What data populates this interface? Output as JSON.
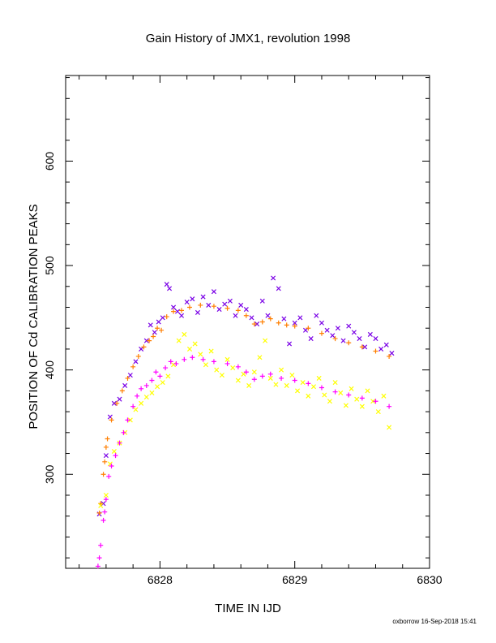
{
  "chart_data": {
    "type": "scatter",
    "title": "Gain History of JMX1, revolution 1998",
    "xlabel": "TIME IN IJD",
    "ylabel": "POSITION OF Cd CALIBRATION PEAKS",
    "xlim": [
      6827.3,
      6830.0
    ],
    "ylim": [
      210,
      682
    ],
    "x_ticks": [
      6828,
      6829,
      6830
    ],
    "y_ticks": [
      300,
      400,
      500,
      600
    ],
    "grid": false,
    "legend": "none",
    "footer": "oxborrow 16-Sep-2018 15:41",
    "series": [
      {
        "marker": "x",
        "color": "#7a00e6",
        "points": [
          [
            6827.55,
            262
          ],
          [
            6827.58,
            272
          ],
          [
            6827.6,
            318
          ],
          [
            6827.63,
            355
          ],
          [
            6827.66,
            368
          ],
          [
            6827.7,
            372
          ],
          [
            6827.74,
            385
          ],
          [
            6827.78,
            395
          ],
          [
            6827.82,
            408
          ],
          [
            6827.86,
            420
          ],
          [
            6827.9,
            428
          ],
          [
            6827.93,
            443
          ],
          [
            6827.96,
            436
          ],
          [
            6827.99,
            446
          ],
          [
            6828.02,
            450
          ],
          [
            6828.05,
            482
          ],
          [
            6828.07,
            478
          ],
          [
            6828.1,
            460
          ],
          [
            6828.13,
            456
          ],
          [
            6828.16,
            452
          ],
          [
            6828.2,
            465
          ],
          [
            6828.24,
            468
          ],
          [
            6828.28,
            455
          ],
          [
            6828.32,
            470
          ],
          [
            6828.36,
            462
          ],
          [
            6828.4,
            475
          ],
          [
            6828.44,
            458
          ],
          [
            6828.48,
            463
          ],
          [
            6828.52,
            466
          ],
          [
            6828.56,
            452
          ],
          [
            6828.6,
            462
          ],
          [
            6828.64,
            458
          ],
          [
            6828.68,
            450
          ],
          [
            6828.72,
            444
          ],
          [
            6828.76,
            466
          ],
          [
            6828.8,
            452
          ],
          [
            6828.84,
            488
          ],
          [
            6828.88,
            478
          ],
          [
            6828.92,
            449
          ],
          [
            6828.96,
            425
          ],
          [
            6829.0,
            445
          ],
          [
            6829.04,
            450
          ],
          [
            6829.08,
            438
          ],
          [
            6829.12,
            430
          ],
          [
            6829.16,
            452
          ],
          [
            6829.2,
            445
          ],
          [
            6829.24,
            438
          ],
          [
            6829.28,
            433
          ],
          [
            6829.32,
            440
          ],
          [
            6829.36,
            428
          ],
          [
            6829.4,
            442
          ],
          [
            6829.44,
            436
          ],
          [
            6829.48,
            430
          ],
          [
            6829.52,
            422
          ],
          [
            6829.56,
            434
          ],
          [
            6829.6,
            430
          ],
          [
            6829.64,
            420
          ],
          [
            6829.68,
            424
          ],
          [
            6829.72,
            416
          ]
        ]
      },
      {
        "marker": "+",
        "color": "#ff7f00",
        "points": [
          [
            6827.55,
            263
          ],
          [
            6827.56,
            272
          ],
          [
            6827.58,
            300
          ],
          [
            6827.59,
            312
          ],
          [
            6827.6,
            326
          ],
          [
            6827.61,
            334
          ],
          [
            6827.64,
            352
          ],
          [
            6827.68,
            368
          ],
          [
            6827.72,
            380
          ],
          [
            6827.76,
            392
          ],
          [
            6827.8,
            403
          ],
          [
            6827.84,
            413
          ],
          [
            6827.88,
            422
          ],
          [
            6827.92,
            428
          ],
          [
            6827.95,
            432
          ],
          [
            6827.98,
            440
          ],
          [
            6828.01,
            438
          ],
          [
            6828.05,
            451
          ],
          [
            6828.1,
            456
          ],
          [
            6828.16,
            457
          ],
          [
            6828.22,
            460
          ],
          [
            6828.3,
            462
          ],
          [
            6828.4,
            461
          ],
          [
            6828.5,
            459
          ],
          [
            6828.58,
            457
          ],
          [
            6828.64,
            452
          ],
          [
            6828.7,
            444
          ],
          [
            6828.76,
            446
          ],
          [
            6828.82,
            449
          ],
          [
            6828.88,
            445
          ],
          [
            6828.94,
            443
          ],
          [
            6829.0,
            442
          ],
          [
            6829.1,
            440
          ],
          [
            6829.2,
            435
          ],
          [
            6829.3,
            430
          ],
          [
            6829.4,
            426
          ],
          [
            6829.5,
            422
          ],
          [
            6829.6,
            418
          ],
          [
            6829.7,
            413
          ]
        ]
      },
      {
        "marker": "x",
        "color": "#ffff00",
        "points": [
          [
            6827.56,
            270
          ],
          [
            6827.6,
            280
          ],
          [
            6827.63,
            310
          ],
          [
            6827.66,
            322
          ],
          [
            6827.7,
            330
          ],
          [
            6827.74,
            340
          ],
          [
            6827.78,
            352
          ],
          [
            6827.82,
            362
          ],
          [
            6827.86,
            368
          ],
          [
            6827.9,
            374
          ],
          [
            6827.94,
            378
          ],
          [
            6827.98,
            384
          ],
          [
            6828.02,
            388
          ],
          [
            6828.06,
            394
          ],
          [
            6828.1,
            405
          ],
          [
            6828.14,
            428
          ],
          [
            6828.18,
            434
          ],
          [
            6828.22,
            420
          ],
          [
            6828.26,
            425
          ],
          [
            6828.3,
            415
          ],
          [
            6828.34,
            405
          ],
          [
            6828.38,
            418
          ],
          [
            6828.42,
            400
          ],
          [
            6828.46,
            395
          ],
          [
            6828.5,
            410
          ],
          [
            6828.54,
            402
          ],
          [
            6828.58,
            390
          ],
          [
            6828.62,
            396
          ],
          [
            6828.66,
            385
          ],
          [
            6828.7,
            398
          ],
          [
            6828.74,
            412
          ],
          [
            6828.78,
            428
          ],
          [
            6828.82,
            392
          ],
          [
            6828.86,
            386
          ],
          [
            6828.9,
            400
          ],
          [
            6828.94,
            385
          ],
          [
            6828.98,
            395
          ],
          [
            6829.02,
            380
          ],
          [
            6829.06,
            388
          ],
          [
            6829.1,
            375
          ],
          [
            6829.14,
            384
          ],
          [
            6829.18,
            392
          ],
          [
            6829.22,
            376
          ],
          [
            6829.26,
            370
          ],
          [
            6829.3,
            388
          ],
          [
            6829.34,
            378
          ],
          [
            6829.38,
            366
          ],
          [
            6829.42,
            382
          ],
          [
            6829.46,
            372
          ],
          [
            6829.5,
            365
          ],
          [
            6829.54,
            380
          ],
          [
            6829.58,
            370
          ],
          [
            6829.62,
            360
          ],
          [
            6829.66,
            375
          ],
          [
            6829.7,
            345
          ]
        ]
      },
      {
        "marker": "+",
        "color": "#ff00ff",
        "points": [
          [
            6827.54,
            212
          ],
          [
            6827.55,
            220
          ],
          [
            6827.56,
            232
          ],
          [
            6827.58,
            256
          ],
          [
            6827.59,
            264
          ],
          [
            6827.6,
            276
          ],
          [
            6827.62,
            298
          ],
          [
            6827.64,
            308
          ],
          [
            6827.67,
            318
          ],
          [
            6827.7,
            330
          ],
          [
            6827.73,
            340
          ],
          [
            6827.76,
            352
          ],
          [
            6827.8,
            365
          ],
          [
            6827.83,
            375
          ],
          [
            6827.86,
            382
          ],
          [
            6827.9,
            385
          ],
          [
            6827.94,
            390
          ],
          [
            6827.97,
            398
          ],
          [
            6828.0,
            394
          ],
          [
            6828.04,
            402
          ],
          [
            6828.08,
            408
          ],
          [
            6828.12,
            406
          ],
          [
            6828.18,
            410
          ],
          [
            6828.24,
            412
          ],
          [
            6828.32,
            410
          ],
          [
            6828.4,
            408
          ],
          [
            6828.5,
            406
          ],
          [
            6828.58,
            403
          ],
          [
            6828.64,
            398
          ],
          [
            6828.7,
            391
          ],
          [
            6828.76,
            394
          ],
          [
            6828.82,
            396
          ],
          [
            6828.9,
            392
          ],
          [
            6829.0,
            390
          ],
          [
            6829.1,
            387
          ],
          [
            6829.2,
            383
          ],
          [
            6829.3,
            379
          ],
          [
            6829.4,
            376
          ],
          [
            6829.5,
            373
          ],
          [
            6829.6,
            370
          ],
          [
            6829.7,
            365
          ]
        ]
      }
    ]
  }
}
